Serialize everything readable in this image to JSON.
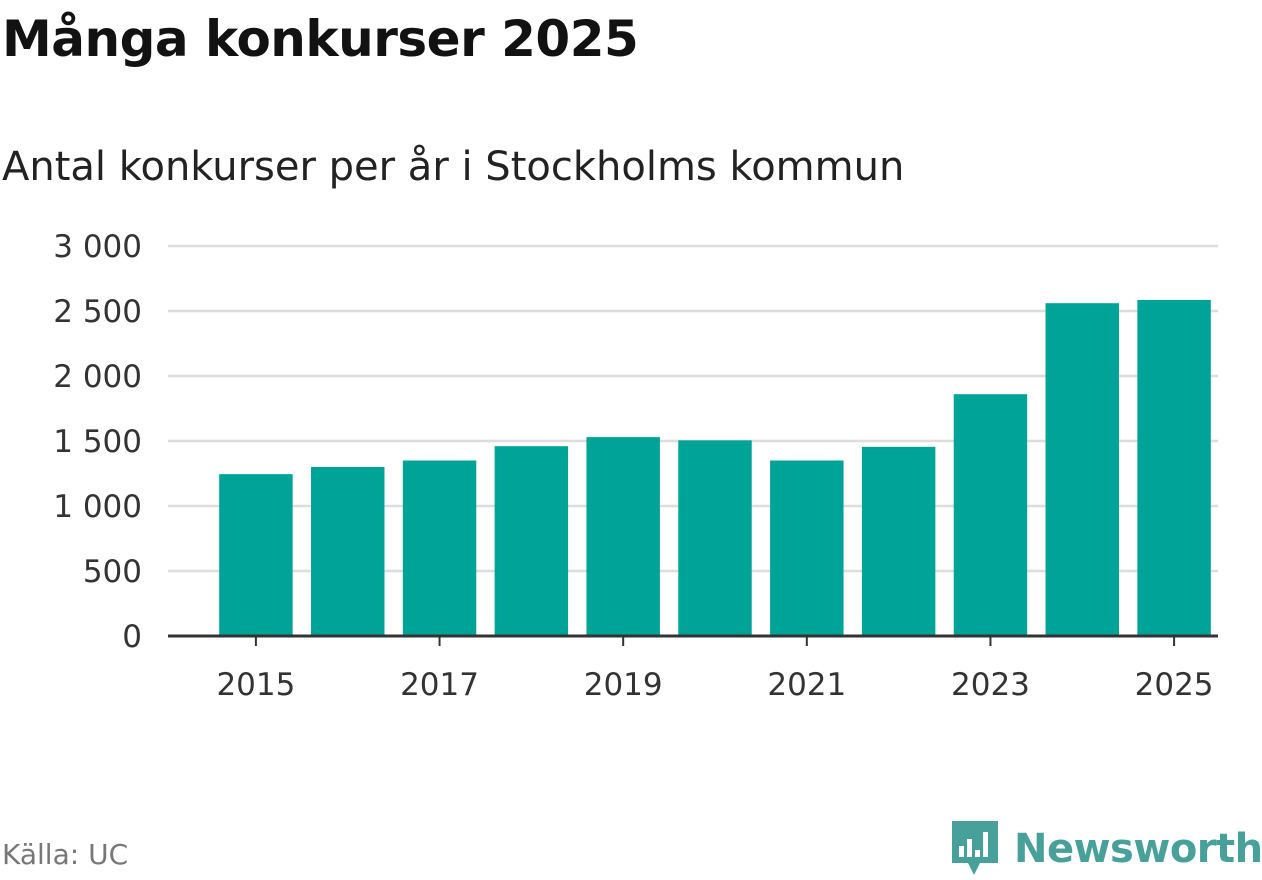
{
  "header": {
    "title": "Många konkurser 2025",
    "subtitle": "Antal konkurser per år i Stockholms kommun"
  },
  "footer": {
    "source": "Källa: UC",
    "brand": "Newsworthy",
    "brand_icon": "bar-chart-logo-icon"
  },
  "colors": {
    "bar": "#00a398",
    "grid": "#dddddd",
    "axis": "#333333",
    "brand": "#48a09a"
  },
  "chart_data": {
    "type": "bar",
    "title": "Många konkurser 2025",
    "subtitle": "Antal konkurser per år i Stockholms kommun",
    "categories": [
      "2015",
      "2016",
      "2017",
      "2018",
      "2019",
      "2020",
      "2021",
      "2022",
      "2023",
      "2024",
      "2025"
    ],
    "values": [
      1245,
      1300,
      1350,
      1460,
      1530,
      1505,
      1350,
      1455,
      1860,
      2560,
      2585
    ],
    "x_tick_labels": [
      "2015",
      "2017",
      "2019",
      "2021",
      "2023",
      "2025"
    ],
    "y_ticks": [
      0,
      500,
      1000,
      1500,
      2000,
      2500,
      3000
    ],
    "y_tick_labels": [
      "0",
      "500",
      "1 000",
      "1 500",
      "2 000",
      "2 500",
      "3 000"
    ],
    "ylim": [
      0,
      3000
    ],
    "xlabel": "",
    "ylabel": "",
    "grid": true
  }
}
